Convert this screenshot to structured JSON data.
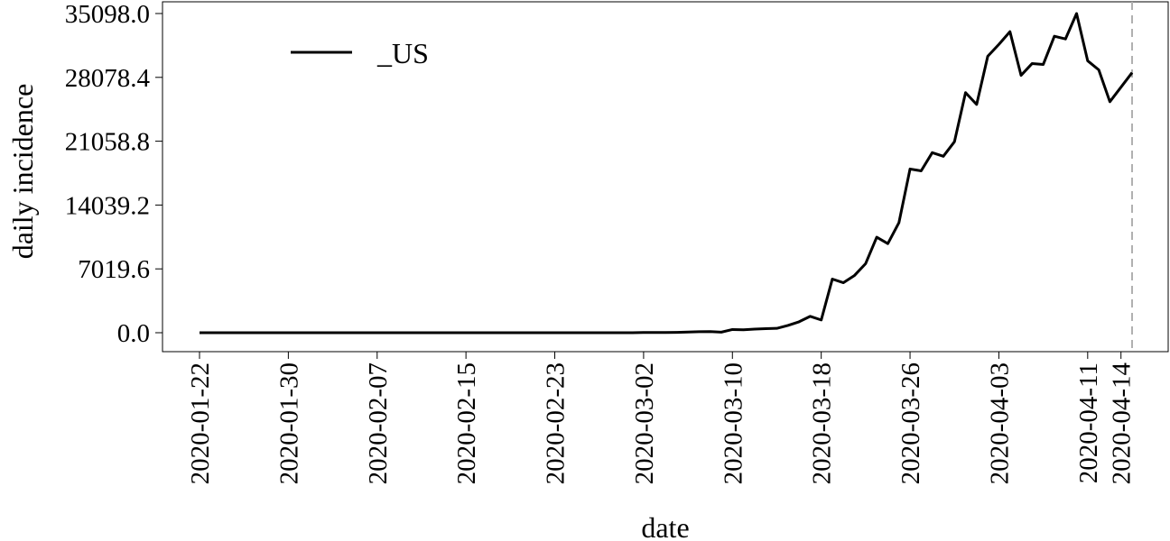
{
  "chart_data": {
    "type": "line",
    "xlabel": "date",
    "ylabel": "daily incidence",
    "ylim": [
      0,
      35098.0
    ],
    "yticks": [
      "0.0",
      "7019.6",
      "14039.2",
      "21058.8",
      "28078.4",
      "35098.0"
    ],
    "xticks": [
      "2020-01-22",
      "2020-01-30",
      "2020-02-07",
      "2020-02-15",
      "2020-02-23",
      "2020-03-02",
      "2020-03-10",
      "2020-03-18",
      "2020-03-26",
      "2020-04-03",
      "2020-04-11",
      "2020-04-14"
    ],
    "x_start": "2020-01-22",
    "x_end": "2020-04-15",
    "grid": false,
    "legend_position": "top-left",
    "vline": "2020-04-15",
    "colors": {
      "line": "#000000",
      "vline": "#b0b0b0"
    },
    "series": [
      {
        "name": "_US",
        "x": [
          "2020-01-22",
          "2020-01-23",
          "2020-01-24",
          "2020-01-25",
          "2020-01-26",
          "2020-01-27",
          "2020-01-28",
          "2020-01-29",
          "2020-01-30",
          "2020-01-31",
          "2020-02-01",
          "2020-02-02",
          "2020-02-03",
          "2020-02-04",
          "2020-02-05",
          "2020-02-06",
          "2020-02-07",
          "2020-02-08",
          "2020-02-09",
          "2020-02-10",
          "2020-02-11",
          "2020-02-12",
          "2020-02-13",
          "2020-02-14",
          "2020-02-15",
          "2020-02-16",
          "2020-02-17",
          "2020-02-18",
          "2020-02-19",
          "2020-02-20",
          "2020-02-21",
          "2020-02-22",
          "2020-02-23",
          "2020-02-24",
          "2020-02-25",
          "2020-02-26",
          "2020-02-27",
          "2020-02-28",
          "2020-02-29",
          "2020-03-01",
          "2020-03-02",
          "2020-03-03",
          "2020-03-04",
          "2020-03-05",
          "2020-03-06",
          "2020-03-07",
          "2020-03-08",
          "2020-03-09",
          "2020-03-10",
          "2020-03-11",
          "2020-03-12",
          "2020-03-13",
          "2020-03-14",
          "2020-03-15",
          "2020-03-16",
          "2020-03-17",
          "2020-03-18",
          "2020-03-19",
          "2020-03-20",
          "2020-03-21",
          "2020-03-22",
          "2020-03-23",
          "2020-03-24",
          "2020-03-25",
          "2020-03-26",
          "2020-03-27",
          "2020-03-28",
          "2020-03-29",
          "2020-03-30",
          "2020-03-31",
          "2020-04-01",
          "2020-04-02",
          "2020-04-03",
          "2020-04-04",
          "2020-04-05",
          "2020-04-06",
          "2020-04-07",
          "2020-04-08",
          "2020-04-09",
          "2020-04-10",
          "2020-04-11",
          "2020-04-12",
          "2020-04-13",
          "2020-04-14",
          "2020-04-15"
        ],
        "y": [
          0,
          0,
          0,
          0,
          0,
          0,
          0,
          0,
          0,
          0,
          0,
          0,
          0,
          0,
          0,
          0,
          0,
          0,
          0,
          0,
          0,
          0,
          0,
          0,
          0,
          0,
          0,
          0,
          0,
          0,
          0,
          0,
          0,
          0,
          0,
          0,
          0,
          0,
          0,
          0,
          20,
          20,
          30,
          40,
          70,
          110,
          120,
          60,
          350,
          320,
          400,
          450,
          480,
          800,
          1200,
          1800,
          1400,
          5900,
          5500,
          6300,
          7600,
          10500,
          9800,
          12100,
          18000,
          17800,
          19800,
          19400,
          21000,
          26400,
          25100,
          30400,
          31700,
          33100,
          28300,
          29600,
          29500,
          32600,
          32300,
          35098,
          29900,
          28900,
          25400,
          27000,
          28600
        ]
      }
    ]
  }
}
